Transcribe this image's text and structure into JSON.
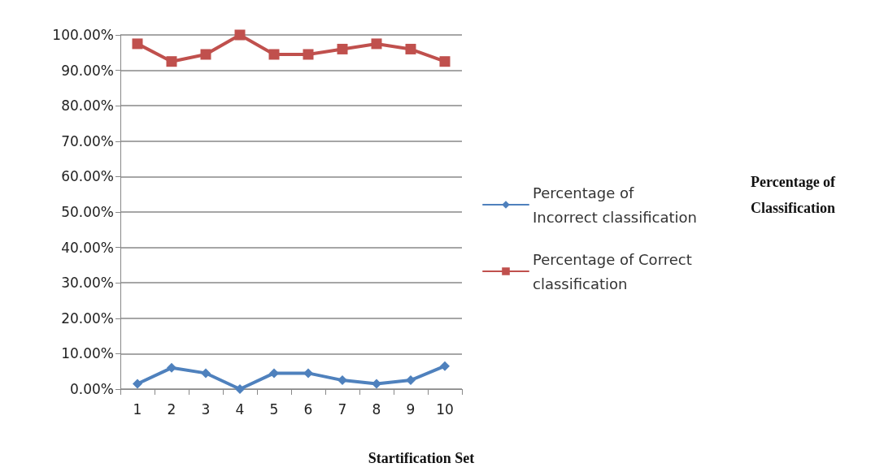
{
  "chart_data": {
    "type": "line",
    "xlabel": "Startification Set",
    "annotations": [
      "Percentage of Classification"
    ],
    "categories": [
      "1",
      "2",
      "3",
      "4",
      "5",
      "6",
      "7",
      "8",
      "9",
      "10"
    ],
    "series": [
      {
        "name": "Percentage of Incorrect classification",
        "color": "#4f81bd",
        "marker": "diamond",
        "values": [
          1.5,
          6,
          4.5,
          0,
          4.5,
          4.5,
          2.5,
          1.5,
          2.5,
          6.5
        ]
      },
      {
        "name": "Percentage of Correct classification",
        "color": "#c0504d",
        "marker": "square",
        "values": [
          97.5,
          92.5,
          94.5,
          100,
          94.5,
          94.5,
          96,
          97.5,
          96,
          92.5
        ]
      }
    ],
    "ylim": [
      0,
      100
    ],
    "yticks": [
      {
        "value": 0,
        "label": "0.00%"
      },
      {
        "value": 10,
        "label": "10.00%"
      },
      {
        "value": 20,
        "label": "20.00%"
      },
      {
        "value": 30,
        "label": "30.00%"
      },
      {
        "value": 40,
        "label": "40.00%"
      },
      {
        "value": 50,
        "label": "50.00%"
      },
      {
        "value": 60,
        "label": "60.00%"
      },
      {
        "value": 70,
        "label": "70.00%"
      },
      {
        "value": 80,
        "label": "80.00%"
      },
      {
        "value": 90,
        "label": "90.00%"
      },
      {
        "value": 100,
        "label": "100.00%"
      }
    ],
    "grid": "y",
    "legend": "right",
    "line_style": "solid"
  }
}
